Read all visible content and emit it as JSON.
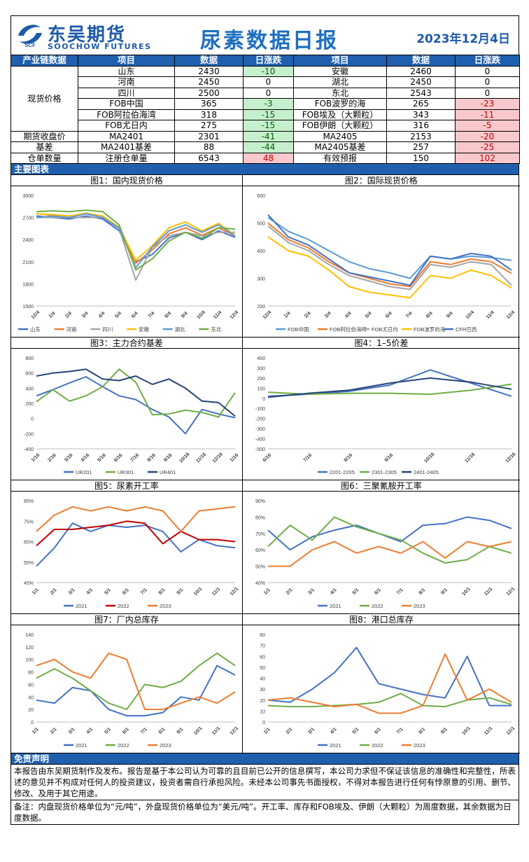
{
  "header": {
    "brand_cn": "东吴期货",
    "brand_en": "SOOCHOW FUTURES",
    "logo_text": "SCF",
    "title": "尿素数据日报",
    "date": "2023年12月4日"
  },
  "table": {
    "headers": [
      "产业链数据",
      "项目",
      "数据",
      "日涨跌",
      "项目",
      "数据",
      "日涨跌"
    ],
    "group_spot": "现货价格",
    "rows": [
      {
        "item1": "山东",
        "val1": "2430",
        "chg1": "-10",
        "dir1": "down",
        "item2": "安徽",
        "val2": "2460",
        "chg2": "0",
        "dir2": ""
      },
      {
        "item1": "河南",
        "val1": "2450",
        "chg1": "0",
        "dir1": "",
        "item2": "湖北",
        "val2": "2450",
        "chg2": "0",
        "dir2": ""
      },
      {
        "item1": "四川",
        "val1": "2500",
        "chg1": "0",
        "dir1": "",
        "item2": "东北",
        "val2": "2543",
        "chg2": "0",
        "dir2": ""
      },
      {
        "item1": "FOB中国",
        "val1": "365",
        "chg1": "-3",
        "dir1": "down",
        "item2": "FOB波罗的海",
        "val2": "265",
        "chg2": "-23",
        "dir2": "up"
      },
      {
        "item1": "FOB阿拉伯海湾",
        "val1": "318",
        "chg1": "-15",
        "dir1": "down",
        "item2": "FOB埃及（大颗粒）",
        "val2": "343",
        "chg2": "-11",
        "dir2": "up"
      },
      {
        "item1": "FOB尤日内",
        "val1": "275",
        "chg1": "-15",
        "dir1": "down",
        "item2": "FOB伊朗（大颗粒）",
        "val2": "316",
        "chg2": "-5",
        "dir2": "up"
      }
    ],
    "futures": {
      "label": "期货收盘价",
      "item1": "MA2401",
      "val1": "2301",
      "chg1": "-41",
      "item2": "MA2405",
      "val2": "2153",
      "chg2": "-20"
    },
    "basis": {
      "label": "基差",
      "item1": "MA2401基差",
      "val1": "88",
      "chg1": "-44",
      "item2": "MA2405基差",
      "val2": "257",
      "chg2": "-25"
    },
    "warehouse": {
      "label": "仓单数量",
      "item1": "注册仓单量",
      "val1": "6543",
      "chg1": "48",
      "item2": "有效预报",
      "val2": "150",
      "chg2": "102"
    }
  },
  "section_main_charts": "主要图表",
  "charts": {
    "c1": {
      "title": "图1：国内现货价格",
      "ylim": [
        1500,
        3000
      ],
      "yticks": [
        "3000",
        "2700",
        "2400",
        "2100",
        "1800",
        "1500"
      ],
      "xticks": [
        "12/4",
        "1/4",
        "2/4",
        "3/4",
        "4/4",
        "5/4",
        "6/4",
        "7/4",
        "8/4",
        "9/4",
        "10/4",
        "11/4",
        "12/4"
      ],
      "legend": [
        "山东",
        "河南",
        "四川",
        "安徽",
        "湖北",
        "东北"
      ],
      "colors": [
        "#4472c4",
        "#ed7d31",
        "#a5a5a5",
        "#ffc000",
        "#5b9bd5",
        "#70ad47"
      ]
    },
    "c2": {
      "title": "图2：国际现货价格",
      "ylim": [
        200,
        600
      ],
      "yticks": [
        "600",
        "500",
        "400",
        "300",
        "200"
      ],
      "xticks": [
        "12/4",
        "1/4",
        "2/4",
        "3/4",
        "4/4",
        "5/4",
        "6/4",
        "7/4",
        "8/4",
        "9/4",
        "10/4",
        "11/4",
        "12/4"
      ],
      "legend": [
        "FOB中国",
        "FOB阿拉伯海湾",
        "FOB尤日内",
        "FOB波罗的海",
        "CFR巴西"
      ],
      "colors": [
        "#5b9bd5",
        "#ed7d31",
        "#a5a5a5",
        "#ffc000",
        "#4472c4"
      ]
    },
    "c3": {
      "title": "图3：主力合约基差",
      "ylim": [
        -400,
        800
      ],
      "yticks": [
        "800",
        "600",
        "400",
        "200",
        "0",
        "-200",
        "-400"
      ],
      "xticks": [
        "1/16",
        "2/16",
        "3/16",
        "4/16",
        "5/16",
        "6/16",
        "7/16",
        "8/16",
        "9/16",
        "10/16",
        "11/16",
        "12/16",
        "1/16"
      ],
      "legend": [
        "UR201",
        "UR301",
        "UR401"
      ],
      "colors": [
        "#4472c4",
        "#70ad47",
        "#264478"
      ]
    },
    "c4": {
      "title": "图4：1–5价差",
      "ylim": [
        -500,
        400
      ],
      "yticks": [
        "400",
        "300",
        "200",
        "100",
        "0",
        "-100",
        "-200",
        "-300",
        "-400",
        "-500"
      ],
      "xticks": [
        "6/16",
        "7/16",
        "8/16",
        "9/16",
        "10/16",
        "11/16",
        "12/16"
      ],
      "legend": [
        "2201-2205",
        "2301-2305",
        "2401-2405"
      ],
      "colors": [
        "#4472c4",
        "#70ad47",
        "#264478"
      ]
    },
    "c5": {
      "title": "图5：尿素开工率",
      "ylim": [
        45,
        85
      ],
      "yticks": [
        "85%",
        "75%",
        "65%",
        "55%",
        "45%"
      ],
      "xticks": [
        "1/1",
        "2/1",
        "3/1",
        "4/1",
        "5/1",
        "6/1",
        "7/1",
        "8/1",
        "9/1",
        "10/1",
        "11/1",
        "12/1"
      ],
      "legend": [
        "2021",
        "2022",
        "2023"
      ],
      "colors": [
        "#4472c4",
        "#c00000",
        "#ed7d31"
      ]
    },
    "c6": {
      "title": "图6：三聚氰胺开工率",
      "ylim": [
        40,
        90
      ],
      "yticks": [
        "90%",
        "80%",
        "70%",
        "60%",
        "50%",
        "40%"
      ],
      "xticks": [
        "1/1",
        "2/1",
        "3/1",
        "4/1",
        "5/1",
        "6/1",
        "7/1",
        "8/1",
        "9/1",
        "10/1",
        "11/1",
        "12/1"
      ],
      "legend": [
        "2021",
        "2022",
        "2023"
      ],
      "colors": [
        "#4472c4",
        "#70ad47",
        "#ed7d31"
      ]
    },
    "c7": {
      "title": "图7：厂内总库存",
      "ylim": [
        0,
        140
      ],
      "yticks": [
        "140",
        "120",
        "100",
        "80",
        "60",
        "40",
        "20",
        "0"
      ],
      "xticks": [
        "1/1",
        "2/1",
        "3/1",
        "4/1",
        "5/1",
        "6/1",
        "7/1",
        "8/1",
        "9/1",
        "10/1",
        "11/1",
        "12/1"
      ],
      "legend": [
        "2021",
        "2022",
        "2023"
      ],
      "colors": [
        "#4472c4",
        "#70ad47",
        "#ed7d31"
      ]
    },
    "c8": {
      "title": "图8：港口总库存",
      "ylim": [
        0,
        80
      ],
      "yticks": [
        "80",
        "70",
        "60",
        "50",
        "40",
        "30",
        "20",
        "10",
        "0"
      ],
      "xticks": [
        "1/1",
        "2/1",
        "3/1",
        "4/1",
        "5/1",
        "6/1",
        "7/1",
        "8/1",
        "9/1",
        "10/1",
        "11/1",
        "12/1"
      ],
      "legend": [
        "2021",
        "2022",
        "2023"
      ],
      "colors": [
        "#4472c4",
        "#70ad47",
        "#ed7d31"
      ]
    }
  },
  "chart_data": [
    {
      "type": "line",
      "title": "图1：国内现货价格",
      "x": [
        "12/4",
        "1/4",
        "2/4",
        "3/4",
        "4/4",
        "5/4",
        "6/4",
        "7/4",
        "8/4",
        "9/4",
        "10/4",
        "11/4",
        "12/4"
      ],
      "ylim": [
        1500,
        3000
      ],
      "series": [
        {
          "name": "山东",
          "values": [
            2720,
            2700,
            2680,
            2720,
            2680,
            2520,
            2100,
            2200,
            2420,
            2500,
            2400,
            2520,
            2430
          ]
        },
        {
          "name": "河南",
          "values": [
            2750,
            2730,
            2720,
            2750,
            2700,
            2560,
            2080,
            2260,
            2480,
            2560,
            2460,
            2560,
            2450
          ]
        },
        {
          "name": "四川",
          "values": [
            2700,
            2700,
            2700,
            2700,
            2700,
            2550,
            1850,
            2300,
            2450,
            2500,
            2450,
            2500,
            2500
          ]
        },
        {
          "name": "安徽",
          "values": [
            2750,
            2740,
            2720,
            2760,
            2720,
            2570,
            2120,
            2320,
            2560,
            2640,
            2520,
            2620,
            2460
          ]
        },
        {
          "name": "湖北",
          "values": [
            2700,
            2720,
            2700,
            2750,
            2700,
            2560,
            2020,
            2300,
            2520,
            2600,
            2500,
            2600,
            2450
          ]
        },
        {
          "name": "东北",
          "values": [
            2780,
            2790,
            2780,
            2800,
            2780,
            2600,
            1990,
            2140,
            2380,
            2500,
            2420,
            2560,
            2543
          ]
        }
      ]
    },
    {
      "type": "line",
      "title": "图2：国际现货价格",
      "x": [
        "12/4",
        "1/4",
        "2/4",
        "3/4",
        "4/4",
        "5/4",
        "6/4",
        "7/4",
        "8/4",
        "9/4",
        "10/4",
        "11/4",
        "12/4"
      ],
      "ylim": [
        200,
        600
      ],
      "series": [
        {
          "name": "FOB中国",
          "values": [
            520,
            470,
            440,
            400,
            360,
            335,
            320,
            300,
            380,
            370,
            380,
            375,
            365
          ]
        },
        {
          "name": "FOB阿拉伯海湾",
          "values": [
            500,
            440,
            410,
            360,
            320,
            300,
            280,
            270,
            360,
            350,
            370,
            360,
            318
          ]
        },
        {
          "name": "FOB尤日内",
          "values": [
            490,
            430,
            400,
            350,
            310,
            290,
            270,
            260,
            350,
            340,
            360,
            350,
            275
          ]
        },
        {
          "name": "FOB波罗的海",
          "values": [
            450,
            400,
            380,
            330,
            270,
            250,
            240,
            230,
            310,
            300,
            330,
            310,
            265
          ]
        },
        {
          "name": "CFR巴西",
          "values": [
            530,
            450,
            420,
            370,
            320,
            305,
            290,
            275,
            380,
            370,
            390,
            380,
            330
          ]
        }
      ]
    },
    {
      "type": "line",
      "title": "图3：主力合约基差",
      "x": [
        "1/16",
        "2/16",
        "3/16",
        "4/16",
        "5/16",
        "6/16",
        "7/16",
        "8/16",
        "9/16",
        "10/16",
        "11/16",
        "12/16",
        "1/16"
      ],
      "ylim": [
        -400,
        800
      ],
      "series": [
        {
          "name": "UR201",
          "values": [
            300,
            380,
            470,
            550,
            420,
            300,
            250,
            120,
            20,
            -200,
            120,
            60,
            10
          ]
        },
        {
          "name": "UR301",
          "values": [
            220,
            380,
            230,
            300,
            420,
            650,
            480,
            50,
            60,
            110,
            80,
            20,
            340
          ]
        },
        {
          "name": "UR401",
          "values": [
            560,
            600,
            620,
            650,
            520,
            500,
            560,
            450,
            520,
            400,
            230,
            210,
            30
          ]
        }
      ]
    },
    {
      "type": "line",
      "title": "图4：1–5价差",
      "x": [
        "6/16",
        "7/16",
        "8/16",
        "9/16",
        "10/16",
        "11/16",
        "12/16"
      ],
      "ylim": [
        -500,
        400
      ],
      "series": [
        {
          "name": "2201-2205",
          "values": [
            20,
            40,
            70,
            130,
            280,
            150,
            20
          ]
        },
        {
          "name": "2301-2305",
          "values": [
            60,
            40,
            50,
            50,
            40,
            80,
            140
          ]
        },
        {
          "name": "2401-2405",
          "values": [
            10,
            50,
            80,
            150,
            200,
            160,
            90
          ]
        }
      ]
    },
    {
      "type": "line",
      "title": "图5：尿素开工率",
      "x": [
        "1/1",
        "2/1",
        "3/1",
        "4/1",
        "5/1",
        "6/1",
        "7/1",
        "8/1",
        "9/1",
        "10/1",
        "11/1",
        "12/1"
      ],
      "ylim": [
        45,
        85
      ],
      "series": [
        {
          "name": "2021",
          "values": [
            53,
            62,
            74,
            70,
            73,
            72,
            73,
            70,
            60,
            66,
            63,
            62
          ]
        },
        {
          "name": "2022",
          "values": [
            63,
            71,
            71,
            72,
            73,
            75,
            74,
            64,
            70,
            66,
            66,
            65
          ]
        },
        {
          "name": "2023",
          "values": [
            70,
            78,
            82,
            80,
            82,
            80,
            82,
            80,
            70,
            80,
            81,
            82
          ]
        }
      ]
    },
    {
      "type": "line",
      "title": "图6：三聚氰胺开工率",
      "x": [
        "1/1",
        "2/1",
        "3/1",
        "4/1",
        "5/1",
        "6/1",
        "7/1",
        "8/1",
        "9/1",
        "10/1",
        "11/1",
        "12/1"
      ],
      "ylim": [
        40,
        90
      ],
      "series": [
        {
          "name": "2021",
          "values": [
            72,
            60,
            68,
            72,
            75,
            70,
            65,
            75,
            76,
            80,
            78,
            73
          ]
        },
        {
          "name": "2022",
          "values": [
            62,
            75,
            66,
            80,
            74,
            70,
            66,
            58,
            52,
            54,
            62,
            58
          ]
        },
        {
          "name": "2023",
          "values": [
            50,
            50,
            60,
            65,
            58,
            62,
            58,
            65,
            55,
            65,
            62,
            65
          ]
        }
      ]
    },
    {
      "type": "line",
      "title": "图7：厂内总库存",
      "x": [
        "1/1",
        "2/1",
        "3/1",
        "4/1",
        "5/1",
        "6/1",
        "7/1",
        "8/1",
        "9/1",
        "10/1",
        "11/1",
        "12/1"
      ],
      "ylim": [
        0,
        140
      ],
      "series": [
        {
          "name": "2021",
          "values": [
            35,
            30,
            55,
            50,
            20,
            10,
            10,
            15,
            40,
            35,
            90,
            75
          ]
        },
        {
          "name": "2022",
          "values": [
            70,
            85,
            70,
            50,
            30,
            20,
            60,
            55,
            65,
            90,
            110,
            90
          ]
        },
        {
          "name": "2023",
          "values": [
            90,
            100,
            80,
            70,
            110,
            100,
            20,
            20,
            30,
            40,
            30,
            48
          ]
        }
      ]
    },
    {
      "type": "line",
      "title": "图8：港口总库存",
      "x": [
        "1/1",
        "2/1",
        "3/1",
        "4/1",
        "5/1",
        "6/1",
        "7/1",
        "8/1",
        "9/1",
        "10/1",
        "11/1",
        "12/1"
      ],
      "ylim": [
        0,
        80
      ],
      "series": [
        {
          "name": "2021",
          "values": [
            20,
            18,
            30,
            45,
            68,
            35,
            30,
            25,
            22,
            60,
            15,
            15
          ]
        },
        {
          "name": "2022",
          "values": [
            15,
            14,
            14,
            15,
            16,
            18,
            26,
            15,
            14,
            20,
            22,
            16
          ]
        },
        {
          "name": "2023",
          "values": [
            20,
            22,
            18,
            14,
            16,
            8,
            8,
            15,
            62,
            20,
            30,
            18
          ]
        }
      ]
    }
  ],
  "section_disclaimer": "免责声明",
  "disclaimer": "本报告由东吴期货制作及发布。报告是基于本公司认为可靠的且目前已公开的信息撰写，本公司力求但不保证该信息的准确性和完整性，所表述的意见并不构成对任何人的投资建议，投资者需自行承担风险。未经本公司事先书面授权，不得对本报告进行任何有悖原意的引用、删节、修改、及用于其它用途。",
  "note": "备注：内盘现货价格单位为“元/吨”，外盘现货价格单位为“美元/吨”。开工率、库存和FOB埃及、伊朗（大颗粒）为周度数据，其余数据为日度数据。"
}
